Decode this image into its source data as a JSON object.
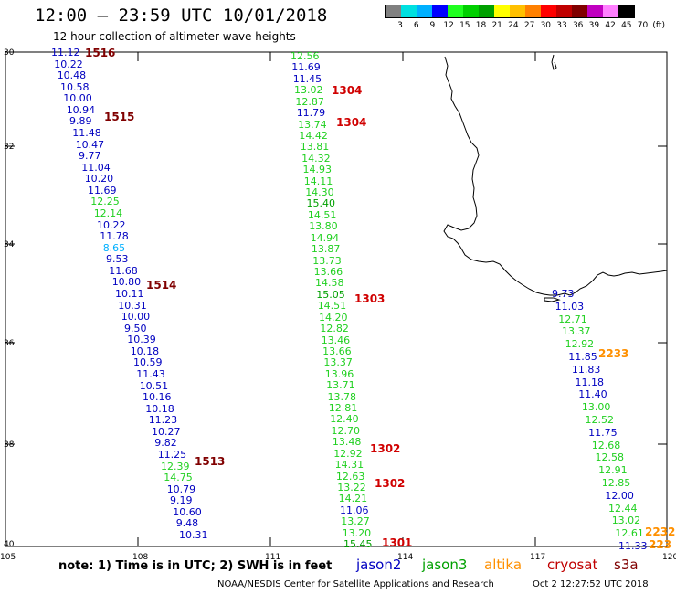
{
  "header": {
    "title": "12:00 – 23:59 UTC 10/01/2018",
    "subtitle": "12 hour collection of altimeter wave heights"
  },
  "legend": {
    "colors": [
      "#808080",
      "#00e0e0",
      "#00b0ff",
      "#0000ff",
      "#20ff20",
      "#00d000",
      "#00a000",
      "#ffff00",
      "#ffc000",
      "#ff8000",
      "#ff0000",
      "#c00000",
      "#800000",
      "#c000c0",
      "#ff80ff",
      "#000000"
    ],
    "labels": [
      "3",
      "6",
      "9",
      "12",
      "15",
      "18",
      "21",
      "24",
      "27",
      "30",
      "33",
      "36",
      "39",
      "42",
      "45",
      "70",
      "(ft)"
    ]
  },
  "map": {
    "lat_labels": [
      "30",
      "32",
      "34",
      "36",
      "38",
      "40"
    ],
    "lon_labels": [
      "105",
      "108",
      "111",
      "114",
      "117",
      "120"
    ]
  },
  "tracks": {
    "cryosat_1516": {
      "values": [
        "11.12",
        "10.22",
        "10.48",
        "10.58",
        "10.00",
        "10.94",
        "9.89",
        "11.48",
        "10.47",
        "9.77",
        "11.04",
        "10.20",
        "11.69",
        "12.25",
        "12.14",
        "10.22",
        "11.78",
        "8.65",
        "9.53",
        "11.68",
        "10.80",
        "10.11",
        "10.31",
        "10.00",
        "9.50",
        "10.39",
        "10.18",
        "10.59",
        "11.43",
        "10.51",
        "10.16",
        "10.18",
        "11.23",
        "10.27",
        "9.82",
        "11.25",
        "12.39",
        "14.75",
        "10.79",
        "9.19",
        "10.60",
        "9.48",
        "10.31"
      ],
      "colors": [
        "#0000c0",
        "#0000c0",
        "#0000c0",
        "#0000c0",
        "#0000c0",
        "#0000c0",
        "#0000c0",
        "#0000c0",
        "#0000c0",
        "#0000c0",
        "#0000c0",
        "#0000c0",
        "#0000c0",
        "#20d020",
        "#20d020",
        "#0000c0",
        "#0000c0",
        "#00b0ff",
        "#0000c0",
        "#0000c0",
        "#0000c0",
        "#0000c0",
        "#0000c0",
        "#0000c0",
        "#0000c0",
        "#0000c0",
        "#0000c0",
        "#0000c0",
        "#0000c0",
        "#0000c0",
        "#0000c0",
        "#0000c0",
        "#0000c0",
        "#0000c0",
        "#0000c0",
        "#0000c0",
        "#20d020",
        "#20d020",
        "#0000c0",
        "#0000c0",
        "#0000c0",
        "#0000c0",
        "#0000c0"
      ],
      "passes": [
        "1516",
        "1515",
        "1514",
        "1513"
      ]
    },
    "cryosat_1304": {
      "values": [
        "12.56",
        "11.69",
        "11.45",
        "13.02",
        "12.87",
        "11.79",
        "13.74",
        "14.42",
        "13.81",
        "14.32",
        "14.93",
        "14.11",
        "14.30",
        "15.40",
        "14.51",
        "13.80",
        "14.94",
        "13.87",
        "13.73",
        "13.66",
        "14.58",
        "15.05",
        "14.51",
        "14.20",
        "12.82",
        "13.46",
        "13.66",
        "13.37",
        "13.96",
        "13.71",
        "13.78",
        "12.81",
        "12.40",
        "12.70",
        "13.48",
        "12.92",
        "14.31",
        "12.63",
        "13.22",
        "14.21",
        "11.06",
        "13.27",
        "13.20",
        "15.45"
      ],
      "colors": [
        "#20d020",
        "#0000c0",
        "#0000c0",
        "#20d020",
        "#20d020",
        "#0000c0",
        "#20d020",
        "#20d020",
        "#20d020",
        "#20d020",
        "#20d020",
        "#20d020",
        "#20d020",
        "#00a000",
        "#20d020",
        "#20d020",
        "#20d020",
        "#20d020",
        "#20d020",
        "#20d020",
        "#20d020",
        "#00a000",
        "#20d020",
        "#20d020",
        "#20d020",
        "#20d020",
        "#20d020",
        "#20d020",
        "#20d020",
        "#20d020",
        "#20d020",
        "#20d020",
        "#20d020",
        "#20d020",
        "#20d020",
        "#20d020",
        "#20d020",
        "#20d020",
        "#20d020",
        "#20d020",
        "#0000c0",
        "#20d020",
        "#20d020",
        "#00a000"
      ],
      "passes": [
        "1304",
        "1304",
        "1303",
        "1302",
        "1302",
        "1301"
      ]
    },
    "altika_2233": {
      "values": [
        "9.73",
        "11.03",
        "12.71",
        "13.37",
        "12.92",
        "11.85",
        "11.83",
        "11.18",
        "11.40",
        "13.00",
        "12.52",
        "11.75",
        "12.68",
        "12.58",
        "12.91",
        "12.85",
        "12.00",
        "12.44",
        "13.02",
        "12.61",
        "11.33"
      ],
      "colors": [
        "#0000c0",
        "#0000c0",
        "#20d020",
        "#20d020",
        "#20d020",
        "#0000c0",
        "#0000c0",
        "#0000c0",
        "#0000c0",
        "#20d020",
        "#20d020",
        "#0000c0",
        "#20d020",
        "#20d020",
        "#20d020",
        "#20d020",
        "#0000c0",
        "#20d020",
        "#20d020",
        "#20d020",
        "#0000c0"
      ],
      "passes": [
        "2233",
        "2232",
        "223"
      ]
    }
  },
  "footer": {
    "note": "note: 1) Time is in UTC; 2) SWH is in feet",
    "satellites": [
      {
        "name": "jason2",
        "color": "#0000c0"
      },
      {
        "name": "jason3",
        "color": "#00a000"
      },
      {
        "name": "altika",
        "color": "#ff9000"
      },
      {
        "name": "cryosat",
        "color": "#c00000"
      },
      {
        "name": "s3a",
        "color": "#800000"
      }
    ],
    "credit": "NOAA/NESDIS Center for Satellite Applications and Research",
    "timestamp": "Oct  2 12:27:52 UTC 2018"
  },
  "style": {
    "pass_colors": {
      "cryosat_red": "#c00000",
      "s3a_maroon": "#800000",
      "altika_orange": "#ff9000"
    }
  }
}
